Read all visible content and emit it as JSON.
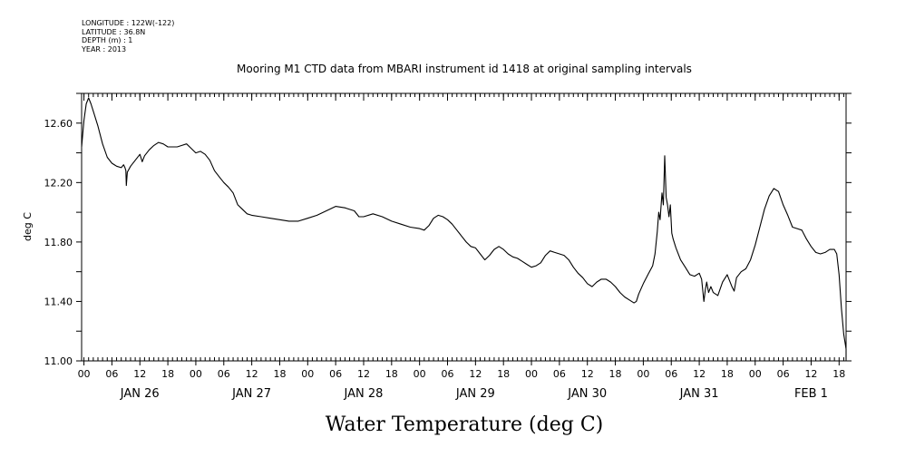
{
  "header": {
    "meta_lines": [
      "LONGITUDE : 122W(-122)",
      "LATITUDE : 36.8N",
      "DEPTH (m) : 1",
      "YEAR : 2013"
    ]
  },
  "chart_data": {
    "type": "line",
    "title": "Mooring M1 CTD data from MBARI instrument id 1418 at original sampling intervals",
    "xlabel": "Water Temperature (deg C)",
    "ylabel": "deg C",
    "ylim": [
      11.0,
      12.8
    ],
    "yticks": [
      11.0,
      11.4,
      11.8,
      12.2,
      12.6
    ],
    "ytick_labels": [
      "11.00",
      "11.40",
      "11.80",
      "12.20",
      "12.60"
    ],
    "xlim_hours": [
      -0.5,
      163.5
    ],
    "x_units": "hours from JAN 26 00:00, 2013",
    "hour_tick_labels": [
      "00",
      "06",
      "12",
      "18",
      "00",
      "06",
      "12",
      "18",
      "00",
      "06",
      "12",
      "18",
      "00",
      "06",
      "12",
      "18",
      "00",
      "06",
      "12",
      "18",
      "00",
      "06",
      "12",
      "18",
      "00",
      "06",
      "12",
      "18"
    ],
    "day_labels": [
      {
        "label": "JAN 26",
        "hour": 12
      },
      {
        "label": "JAN 27",
        "hour": 36
      },
      {
        "label": "JAN 28",
        "hour": 60
      },
      {
        "label": "JAN 29",
        "hour": 84
      },
      {
        "label": "JAN 30",
        "hour": 108
      },
      {
        "label": "JAN 31",
        "hour": 132
      },
      {
        "label": "FEB  1",
        "hour": 156
      }
    ],
    "grid": false,
    "series": [
      {
        "color": "#000000",
        "points": [
          [
            -0.5,
            12.44
          ],
          [
            0.0,
            12.62
          ],
          [
            0.5,
            12.73
          ],
          [
            1.0,
            12.77
          ],
          [
            1.5,
            12.73
          ],
          [
            2.0,
            12.68
          ],
          [
            3.0,
            12.58
          ],
          [
            4.0,
            12.46
          ],
          [
            5.0,
            12.37
          ],
          [
            6.0,
            12.33
          ],
          [
            7.0,
            12.31
          ],
          [
            8.0,
            12.3
          ],
          [
            8.5,
            12.32
          ],
          [
            8.8,
            12.3
          ],
          [
            9.0,
            12.28
          ],
          [
            9.1,
            12.18
          ],
          [
            9.3,
            12.27
          ],
          [
            10.0,
            12.31
          ],
          [
            11.0,
            12.35
          ],
          [
            12.0,
            12.39
          ],
          [
            12.5,
            12.34
          ],
          [
            13.0,
            12.38
          ],
          [
            14.0,
            12.42
          ],
          [
            15.0,
            12.45
          ],
          [
            16.0,
            12.47
          ],
          [
            17.0,
            12.46
          ],
          [
            18.0,
            12.44
          ],
          [
            19.0,
            12.44
          ],
          [
            20.0,
            12.44
          ],
          [
            21.0,
            12.45
          ],
          [
            22.0,
            12.46
          ],
          [
            23.0,
            12.43
          ],
          [
            24.0,
            12.4
          ],
          [
            25.0,
            12.41
          ],
          [
            26.0,
            12.39
          ],
          [
            27.0,
            12.35
          ],
          [
            28.0,
            12.28
          ],
          [
            29.0,
            12.24
          ],
          [
            30.0,
            12.2
          ],
          [
            31.0,
            12.17
          ],
          [
            32.0,
            12.13
          ],
          [
            33.0,
            12.05
          ],
          [
            34.0,
            12.02
          ],
          [
            35.0,
            11.99
          ],
          [
            36.0,
            11.98
          ],
          [
            38.0,
            11.97
          ],
          [
            40.0,
            11.96
          ],
          [
            42.0,
            11.95
          ],
          [
            44.0,
            11.94
          ],
          [
            46.0,
            11.94
          ],
          [
            48.0,
            11.96
          ],
          [
            50.0,
            11.98
          ],
          [
            52.0,
            12.01
          ],
          [
            54.0,
            12.04
          ],
          [
            56.0,
            12.03
          ],
          [
            58.0,
            12.01
          ],
          [
            59.0,
            11.97
          ],
          [
            60.0,
            11.97
          ],
          [
            62.0,
            11.99
          ],
          [
            64.0,
            11.97
          ],
          [
            66.0,
            11.94
          ],
          [
            68.0,
            11.92
          ],
          [
            70.0,
            11.9
          ],
          [
            72.0,
            11.89
          ],
          [
            73.0,
            11.88
          ],
          [
            74.0,
            11.91
          ],
          [
            75.0,
            11.96
          ],
          [
            76.0,
            11.98
          ],
          [
            77.0,
            11.97
          ],
          [
            78.0,
            11.95
          ],
          [
            79.0,
            11.92
          ],
          [
            80.0,
            11.88
          ],
          [
            81.0,
            11.84
          ],
          [
            82.0,
            11.8
          ],
          [
            83.0,
            11.77
          ],
          [
            84.0,
            11.76
          ],
          [
            85.0,
            11.72
          ],
          [
            86.0,
            11.68
          ],
          [
            87.0,
            11.71
          ],
          [
            88.0,
            11.75
          ],
          [
            89.0,
            11.77
          ],
          [
            90.0,
            11.75
          ],
          [
            91.0,
            11.72
          ],
          [
            92.0,
            11.7
          ],
          [
            93.0,
            11.69
          ],
          [
            94.0,
            11.67
          ],
          [
            95.0,
            11.65
          ],
          [
            96.0,
            11.63
          ],
          [
            97.0,
            11.64
          ],
          [
            98.0,
            11.66
          ],
          [
            99.0,
            11.71
          ],
          [
            100.0,
            11.74
          ],
          [
            101.0,
            11.73
          ],
          [
            102.0,
            11.72
          ],
          [
            103.0,
            11.71
          ],
          [
            104.0,
            11.68
          ],
          [
            105.0,
            11.63
          ],
          [
            106.0,
            11.59
          ],
          [
            107.0,
            11.56
          ],
          [
            108.0,
            11.52
          ],
          [
            109.0,
            11.5
          ],
          [
            110.0,
            11.53
          ],
          [
            111.0,
            11.55
          ],
          [
            112.0,
            11.55
          ],
          [
            113.0,
            11.53
          ],
          [
            114.0,
            11.5
          ],
          [
            115.0,
            11.46
          ],
          [
            116.0,
            11.43
          ],
          [
            117.0,
            11.41
          ],
          [
            118.0,
            11.39
          ],
          [
            118.5,
            11.4
          ],
          [
            119.0,
            11.45
          ],
          [
            120.0,
            11.52
          ],
          [
            121.0,
            11.58
          ],
          [
            122.0,
            11.64
          ],
          [
            122.5,
            11.72
          ],
          [
            123.0,
            11.87
          ],
          [
            123.3,
            12.0
          ],
          [
            123.6,
            11.95
          ],
          [
            124.0,
            12.13
          ],
          [
            124.3,
            12.05
          ],
          [
            124.6,
            12.38
          ],
          [
            124.9,
            12.1
          ],
          [
            125.2,
            12.05
          ],
          [
            125.5,
            11.97
          ],
          [
            125.8,
            12.05
          ],
          [
            126.1,
            11.86
          ],
          [
            126.4,
            11.82
          ],
          [
            127.0,
            11.76
          ],
          [
            128.0,
            11.68
          ],
          [
            129.0,
            11.63
          ],
          [
            130.0,
            11.58
          ],
          [
            131.0,
            11.57
          ],
          [
            132.0,
            11.59
          ],
          [
            132.5,
            11.55
          ],
          [
            133.0,
            11.4
          ],
          [
            133.3,
            11.48
          ],
          [
            133.6,
            11.53
          ],
          [
            134.0,
            11.46
          ],
          [
            134.5,
            11.5
          ],
          [
            135.0,
            11.46
          ],
          [
            136.0,
            11.44
          ],
          [
            137.0,
            11.53
          ],
          [
            138.0,
            11.58
          ],
          [
            139.0,
            11.5
          ],
          [
            139.5,
            11.47
          ],
          [
            140.0,
            11.56
          ],
          [
            141.0,
            11.6
          ],
          [
            142.0,
            11.62
          ],
          [
            143.0,
            11.68
          ],
          [
            144.0,
            11.78
          ],
          [
            145.0,
            11.9
          ],
          [
            146.0,
            12.02
          ],
          [
            147.0,
            12.11
          ],
          [
            148.0,
            12.16
          ],
          [
            149.0,
            12.14
          ],
          [
            150.0,
            12.05
          ],
          [
            151.0,
            11.98
          ],
          [
            152.0,
            11.9
          ],
          [
            153.0,
            11.89
          ],
          [
            154.0,
            11.88
          ],
          [
            155.0,
            11.82
          ],
          [
            156.0,
            11.77
          ],
          [
            157.0,
            11.73
          ],
          [
            158.0,
            11.72
          ],
          [
            159.0,
            11.73
          ],
          [
            160.0,
            11.75
          ],
          [
            161.0,
            11.75
          ],
          [
            161.5,
            11.72
          ],
          [
            162.0,
            11.58
          ],
          [
            162.5,
            11.35
          ],
          [
            163.0,
            11.18
          ],
          [
            163.5,
            11.08
          ],
          [
            164.0,
            11.01
          ],
          [
            164.5,
            11.02
          ]
        ]
      }
    ]
  }
}
